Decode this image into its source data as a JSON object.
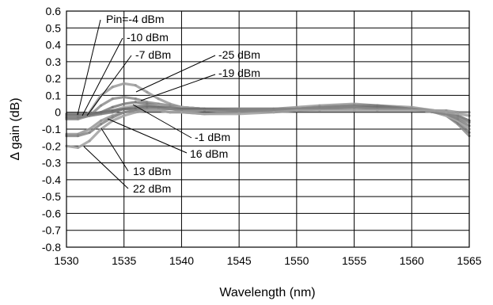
{
  "chart_data": {
    "type": "line",
    "title": "",
    "xlabel": "Wavelength (nm)",
    "ylabel": "Δ gain (dB)",
    "xlim": [
      1530,
      1565
    ],
    "ylim": [
      -0.8,
      0.6
    ],
    "x_ticks": [
      "1530",
      "1535",
      "1540",
      "1545",
      "1550",
      "1555",
      "1560",
      "1565"
    ],
    "y_ticks": [
      "0.6",
      "0.5",
      "0.4",
      "0.3",
      "0.2",
      "0.1",
      "0",
      "-0.1",
      "-0.2",
      "-0.3",
      "-0.4",
      "-0.5",
      "-0.6",
      "-0.7",
      "-0.8"
    ],
    "grid": true,
    "x": [
      1530,
      1531,
      1532,
      1533,
      1534,
      1535,
      1536,
      1537,
      1538,
      1539,
      1540,
      1542,
      1545,
      1548,
      1550,
      1552,
      1555,
      1557,
      1560,
      1562,
      1563,
      1564,
      1565
    ],
    "series": [
      {
        "name": "-25 dBm",
        "values": [
          -0.04,
          -0.04,
          0.0,
          0.1,
          0.15,
          0.17,
          0.16,
          0.12,
          0.08,
          0.05,
          0.03,
          0.02,
          0.02,
          0.02,
          0.03,
          0.04,
          0.05,
          0.04,
          0.03,
          0.01,
          -0.01,
          -0.05,
          -0.1
        ]
      },
      {
        "name": "-19 dBm",
        "values": [
          -0.04,
          -0.04,
          -0.02,
          0.04,
          0.08,
          0.09,
          0.08,
          0.06,
          0.05,
          0.04,
          0.03,
          0.02,
          0.02,
          0.02,
          0.02,
          0.03,
          0.04,
          0.04,
          0.02,
          0.0,
          -0.02,
          -0.07,
          -0.14
        ]
      },
      {
        "name": "Pin=-4 dBm",
        "values": [
          -0.03,
          -0.03,
          -0.02,
          0.0,
          0.03,
          0.05,
          0.06,
          0.05,
          0.04,
          0.03,
          0.03,
          0.02,
          0.02,
          0.02,
          0.02,
          0.03,
          0.04,
          0.04,
          0.02,
          0.0,
          -0.02,
          -0.06,
          -0.12
        ]
      },
      {
        "name": "-10 dBm",
        "values": [
          -0.02,
          -0.02,
          -0.02,
          -0.01,
          0.01,
          0.03,
          0.04,
          0.04,
          0.04,
          0.03,
          0.03,
          0.02,
          0.02,
          0.02,
          0.02,
          0.03,
          0.04,
          0.03,
          0.02,
          0.0,
          -0.02,
          -0.05,
          -0.1
        ]
      },
      {
        "name": "-7 dBm",
        "values": [
          -0.02,
          -0.02,
          -0.02,
          -0.01,
          0.0,
          0.02,
          0.03,
          0.04,
          0.03,
          0.03,
          0.02,
          0.02,
          0.02,
          0.02,
          0.02,
          0.03,
          0.04,
          0.03,
          0.02,
          0.0,
          -0.01,
          -0.04,
          -0.08
        ]
      },
      {
        "name": "-1 dBm",
        "values": [
          -0.01,
          -0.01,
          -0.01,
          0.0,
          0.01,
          0.02,
          0.02,
          0.03,
          0.03,
          0.02,
          0.02,
          0.02,
          0.01,
          0.01,
          0.01,
          0.02,
          0.03,
          0.03,
          0.02,
          0.01,
          0.0,
          -0.02,
          -0.05
        ]
      },
      {
        "name": "16 dBm",
        "values": [
          -0.13,
          -0.13,
          -0.1,
          -0.05,
          -0.02,
          0.0,
          0.01,
          0.01,
          0.01,
          0.0,
          0.0,
          -0.01,
          0.0,
          0.01,
          0.01,
          0.02,
          0.02,
          0.02,
          0.02,
          0.01,
          0.01,
          0.0,
          0.0
        ]
      },
      {
        "name": "13 dBm",
        "values": [
          -0.14,
          -0.14,
          -0.12,
          -0.07,
          -0.03,
          0.0,
          0.01,
          0.02,
          0.02,
          0.02,
          0.01,
          0.01,
          0.01,
          0.01,
          0.02,
          0.02,
          0.03,
          0.02,
          0.02,
          0.0,
          -0.01,
          -0.03,
          -0.06
        ]
      },
      {
        "name": "22 dBm",
        "values": [
          -0.2,
          -0.21,
          -0.17,
          -0.1,
          -0.05,
          -0.02,
          0.0,
          0.01,
          0.01,
          0.0,
          0.0,
          -0.01,
          -0.01,
          0.0,
          0.01,
          0.01,
          0.01,
          0.01,
          0.01,
          0.01,
          0.0,
          -0.01,
          -0.02
        ]
      }
    ],
    "annotations": [
      "Pin=-4 dBm",
      "-10 dBm",
      "-7 dBm",
      "-25 dBm",
      "-19 dBm",
      "-1 dBm",
      "16 dBm",
      "13 dBm",
      "22 dBm"
    ]
  }
}
